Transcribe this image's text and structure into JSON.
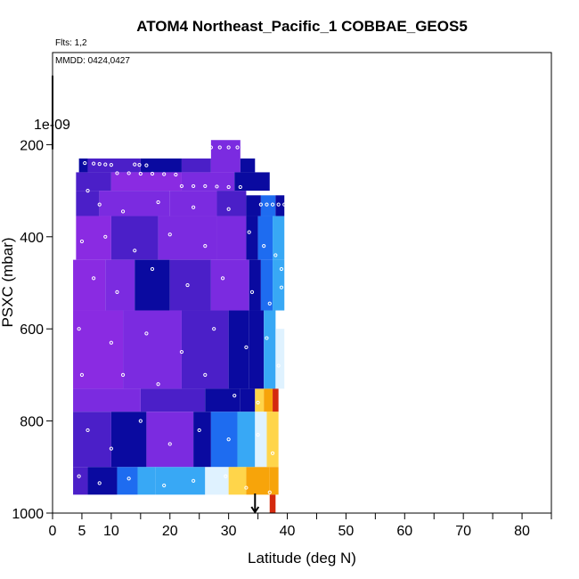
{
  "chart_data": {
    "type": "heatmap",
    "title": "ATOM4 Northeast_Pacific_1 COBBAE_GEOS5",
    "flights_label": "Flts: 1,2",
    "dates_label": "MMDD: 0424,0427",
    "xlabel": "Latitude (deg N)",
    "ylabel": "PSXC (mbar)",
    "xlim": [
      0,
      85
    ],
    "ylim": [
      1000,
      0
    ],
    "y_axis_reversed": true,
    "x_ticks": [
      0,
      5,
      10,
      20,
      30,
      40,
      50,
      60,
      70,
      80
    ],
    "x_minor_ticks": [
      15,
      25,
      35,
      45,
      55,
      65,
      75,
      85
    ],
    "y_ticks": [
      200,
      400,
      600,
      800,
      1000
    ],
    "scale_label": "1e-09",
    "scale_bar_range_mbar": [
      50,
      210
    ],
    "arrow_latitude": 34.5,
    "colors": {
      "purple": "#8a2be2",
      "violet": "#7b2be0",
      "indigo": "#4b1fc8",
      "navy": "#0a0aa0",
      "blue": "#1e6cf0",
      "azure": "#38a8f5",
      "light": "#dff2ff",
      "yellow": "#ffd54a",
      "orange": "#f7a40a",
      "red": "#d42a0e",
      "marker": "#ffffff"
    },
    "cells": [
      [
        4.5,
        6.0,
        230,
        260,
        "navy"
      ],
      [
        6.0,
        15.0,
        230,
        260,
        "indigo"
      ],
      [
        15.0,
        22.0,
        230,
        260,
        "navy"
      ],
      [
        22.0,
        27.0,
        230,
        260,
        "indigo"
      ],
      [
        27.0,
        32.0,
        190,
        260,
        "violet"
      ],
      [
        32.0,
        34.5,
        230,
        260,
        "navy"
      ],
      [
        4.0,
        10.0,
        260,
        300,
        "indigo"
      ],
      [
        10.0,
        22.0,
        260,
        300,
        "purple"
      ],
      [
        22.0,
        31.0,
        260,
        300,
        "violet"
      ],
      [
        31.0,
        37.0,
        260,
        300,
        "navy"
      ],
      [
        4.0,
        8.0,
        300,
        355,
        "indigo"
      ],
      [
        8.0,
        20.0,
        300,
        355,
        "violet"
      ],
      [
        20.0,
        28.0,
        300,
        355,
        "violet"
      ],
      [
        28.0,
        33.0,
        300,
        355,
        "indigo"
      ],
      [
        33.0,
        35.5,
        310,
        355,
        "navy"
      ],
      [
        35.5,
        38.0,
        310,
        355,
        "blue"
      ],
      [
        38.0,
        39.5,
        310,
        355,
        "navy"
      ],
      [
        4.0,
        10.0,
        355,
        450,
        "purple"
      ],
      [
        10.0,
        18.0,
        355,
        450,
        "indigo"
      ],
      [
        18.0,
        28.0,
        355,
        450,
        "violet"
      ],
      [
        28.0,
        33.0,
        355,
        450,
        "violet"
      ],
      [
        33.0,
        35.0,
        355,
        450,
        "navy"
      ],
      [
        35.0,
        37.5,
        355,
        450,
        "blue"
      ],
      [
        37.5,
        39.5,
        355,
        450,
        "azure"
      ],
      [
        3.5,
        9.0,
        450,
        560,
        "purple"
      ],
      [
        9.0,
        14.0,
        450,
        560,
        "violet"
      ],
      [
        14.0,
        20.0,
        450,
        560,
        "navy"
      ],
      [
        20.0,
        27.0,
        450,
        560,
        "indigo"
      ],
      [
        27.0,
        33.5,
        450,
        560,
        "violet"
      ],
      [
        33.5,
        35.5,
        450,
        560,
        "navy"
      ],
      [
        35.5,
        37.5,
        450,
        560,
        "blue"
      ],
      [
        37.5,
        39.5,
        450,
        560,
        "azure"
      ],
      [
        3.5,
        12.0,
        560,
        730,
        "purple"
      ],
      [
        12.0,
        22.0,
        560,
        730,
        "violet"
      ],
      [
        22.0,
        30.0,
        560,
        730,
        "indigo"
      ],
      [
        30.0,
        33.5,
        560,
        730,
        "navy"
      ],
      [
        33.5,
        36.0,
        560,
        730,
        "navy"
      ],
      [
        36.0,
        38.0,
        560,
        730,
        "azure"
      ],
      [
        38.0,
        39.5,
        600,
        730,
        "light"
      ],
      [
        3.5,
        15.0,
        730,
        780,
        "violet"
      ],
      [
        15.0,
        26.0,
        730,
        780,
        "indigo"
      ],
      [
        26.0,
        32.0,
        730,
        780,
        "navy"
      ],
      [
        32.0,
        34.5,
        730,
        780,
        "navy"
      ],
      [
        34.5,
        36.0,
        730,
        780,
        "yellow"
      ],
      [
        36.0,
        37.5,
        730,
        780,
        "orange"
      ],
      [
        37.5,
        38.5,
        730,
        780,
        "red"
      ],
      [
        3.5,
        10.0,
        780,
        900,
        "indigo"
      ],
      [
        10.0,
        16.0,
        780,
        900,
        "navy"
      ],
      [
        16.0,
        24.0,
        780,
        900,
        "violet"
      ],
      [
        24.0,
        27.0,
        780,
        900,
        "navy"
      ],
      [
        27.0,
        31.5,
        780,
        900,
        "blue"
      ],
      [
        31.5,
        34.5,
        780,
        900,
        "azure"
      ],
      [
        34.5,
        36.5,
        780,
        900,
        "light"
      ],
      [
        36.5,
        38.5,
        780,
        900,
        "yellow"
      ],
      [
        3.5,
        6.0,
        900,
        960,
        "indigo"
      ],
      [
        6.0,
        11.0,
        900,
        960,
        "navy"
      ],
      [
        11.0,
        14.5,
        900,
        960,
        "blue"
      ],
      [
        14.5,
        17.5,
        900,
        960,
        "azure"
      ],
      [
        17.5,
        26.0,
        900,
        960,
        "azure"
      ],
      [
        26.0,
        30.0,
        900,
        960,
        "light"
      ],
      [
        30.0,
        33.0,
        900,
        960,
        "yellow"
      ],
      [
        33.0,
        37.0,
        900,
        960,
        "orange"
      ],
      [
        37.0,
        38.5,
        900,
        960,
        "orange"
      ],
      [
        37.0,
        38.0,
        960,
        1000,
        "red"
      ]
    ],
    "markers": [
      [
        5.5,
        240
      ],
      [
        7.0,
        241
      ],
      [
        8.0,
        242
      ],
      [
        9.0,
        243
      ],
      [
        10.0,
        244
      ],
      [
        14.0,
        243
      ],
      [
        14.8,
        244
      ],
      [
        16.0,
        245
      ],
      [
        11.0,
        262
      ],
      [
        13.0,
        262
      ],
      [
        15.0,
        263
      ],
      [
        17.0,
        263
      ],
      [
        19.0,
        264
      ],
      [
        21.0,
        265
      ],
      [
        22.0,
        290
      ],
      [
        24.0,
        290
      ],
      [
        26.0,
        290
      ],
      [
        28.0,
        291
      ],
      [
        30.0,
        292
      ],
      [
        32.0,
        292
      ],
      [
        27.0,
        206
      ],
      [
        28.5,
        206
      ],
      [
        30.0,
        206
      ],
      [
        31.5,
        206
      ],
      [
        35.5,
        330
      ],
      [
        36.5,
        330
      ],
      [
        37.5,
        330
      ],
      [
        38.5,
        330
      ],
      [
        39.5,
        330
      ],
      [
        6.0,
        300
      ],
      [
        8.0,
        330
      ],
      [
        12.0,
        345
      ],
      [
        18.0,
        325
      ],
      [
        24.0,
        336
      ],
      [
        30.0,
        340
      ],
      [
        5.0,
        410
      ],
      [
        9.0,
        400
      ],
      [
        14.0,
        430
      ],
      [
        20.0,
        395
      ],
      [
        26.0,
        420
      ],
      [
        33.5,
        390
      ],
      [
        36.0,
        420
      ],
      [
        38.0,
        440
      ],
      [
        39.0,
        470
      ],
      [
        7.0,
        490
      ],
      [
        11.0,
        520
      ],
      [
        17.0,
        470
      ],
      [
        23.0,
        505
      ],
      [
        29.0,
        490
      ],
      [
        34.0,
        520
      ],
      [
        37.0,
        545
      ],
      [
        39.0,
        510
      ],
      [
        4.5,
        600
      ],
      [
        10.0,
        630
      ],
      [
        16.0,
        610
      ],
      [
        22.0,
        650
      ],
      [
        27.5,
        600
      ],
      [
        33.0,
        640
      ],
      [
        36.5,
        620
      ],
      [
        38.5,
        680
      ],
      [
        5.0,
        700
      ],
      [
        12.0,
        700
      ],
      [
        18.0,
        720
      ],
      [
        26.0,
        700
      ],
      [
        31.0,
        745
      ],
      [
        35.0,
        760
      ],
      [
        6.0,
        820
      ],
      [
        10.0,
        860
      ],
      [
        15.0,
        800
      ],
      [
        20.0,
        850
      ],
      [
        25.0,
        820
      ],
      [
        30.0,
        840
      ],
      [
        35.0,
        830
      ],
      [
        37.5,
        870
      ],
      [
        4.5,
        920
      ],
      [
        8.0,
        935
      ],
      [
        13.0,
        925
      ],
      [
        19.0,
        940
      ],
      [
        24.0,
        930
      ],
      [
        29.5,
        920
      ],
      [
        33.0,
        945
      ],
      [
        37.0,
        955
      ]
    ]
  }
}
